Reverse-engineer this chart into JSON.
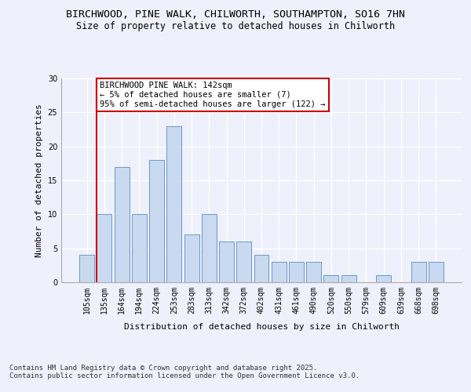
{
  "title_line1": "BIRCHWOOD, PINE WALK, CHILWORTH, SOUTHAMPTON, SO16 7HN",
  "title_line2": "Size of property relative to detached houses in Chilworth",
  "xlabel": "Distribution of detached houses by size in Chilworth",
  "ylabel": "Number of detached properties",
  "categories": [
    "105sqm",
    "135sqm",
    "164sqm",
    "194sqm",
    "224sqm",
    "253sqm",
    "283sqm",
    "313sqm",
    "342sqm",
    "372sqm",
    "402sqm",
    "431sqm",
    "461sqm",
    "490sqm",
    "520sqm",
    "550sqm",
    "579sqm",
    "609sqm",
    "639sqm",
    "668sqm",
    "698sqm"
  ],
  "values": [
    4,
    10,
    17,
    10,
    18,
    23,
    7,
    10,
    6,
    6,
    4,
    3,
    3,
    3,
    1,
    1,
    0,
    1,
    0,
    3,
    3
  ],
  "bar_color": "#c8d9f0",
  "bar_edge_color": "#5b8ac4",
  "red_line_index": 1,
  "annotation_text": "BIRCHWOOD PINE WALK: 142sqm\n← 5% of detached houses are smaller (7)\n95% of semi-detached houses are larger (122) →",
  "annotation_box_color": "#ffffff",
  "annotation_box_edge": "#cc0000",
  "ylim": [
    0,
    30
  ],
  "yticks": [
    0,
    5,
    10,
    15,
    20,
    25,
    30
  ],
  "footnote": "Contains HM Land Registry data © Crown copyright and database right 2025.\nContains public sector information licensed under the Open Government Licence v3.0.",
  "background_color": "#eef1fb",
  "plot_background": "#eef1fb",
  "grid_color": "#ffffff",
  "title_fontsize": 9.5,
  "subtitle_fontsize": 8.5,
  "axis_label_fontsize": 8,
  "tick_fontsize": 7,
  "footnote_fontsize": 6.5,
  "annotation_fontsize": 7.5
}
